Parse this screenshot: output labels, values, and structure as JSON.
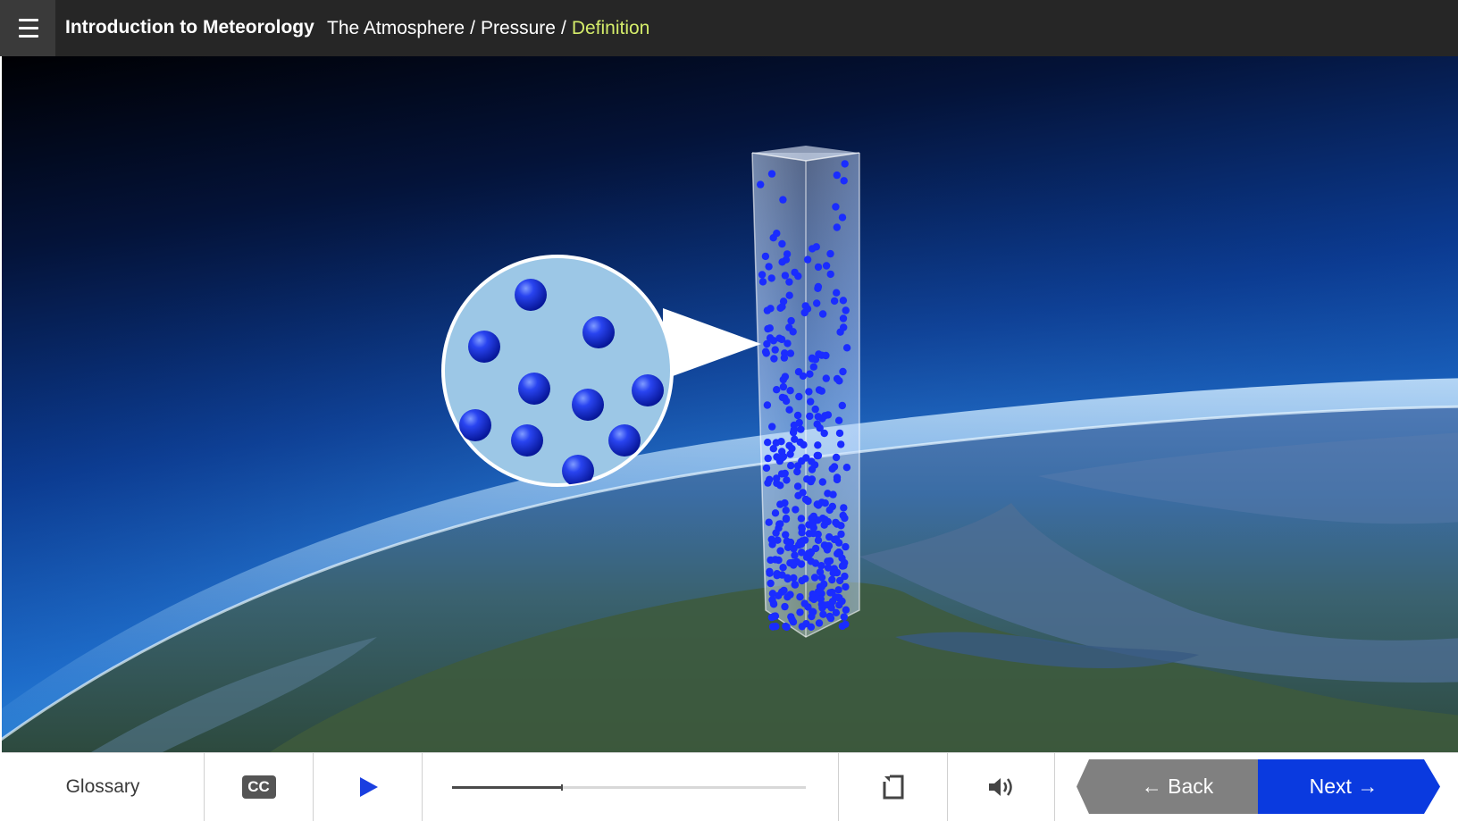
{
  "header": {
    "menu_icon": "hamburger-menu-icon",
    "course_title": "Introduction to Meteorology",
    "breadcrumb": {
      "section": "The Atmosphere",
      "separator": "/",
      "subsection": "Pressure",
      "current": "Definition"
    }
  },
  "player": {
    "glossary_label": "Glossary",
    "cc_label": "CC",
    "play_icon": "play-icon",
    "progress_fraction": 0.31,
    "fullscreen_icon": "fullscreen-icon",
    "volume_icon": "volume-icon",
    "back_label": "← Back",
    "next_label": "Next →"
  },
  "colors": {
    "topbar_bg": "#262626",
    "breadcrumb_current": "#d4ec6a",
    "molecule_blue": "#1a2cff",
    "next_button": "#0a3adf",
    "back_button": "#808080"
  }
}
